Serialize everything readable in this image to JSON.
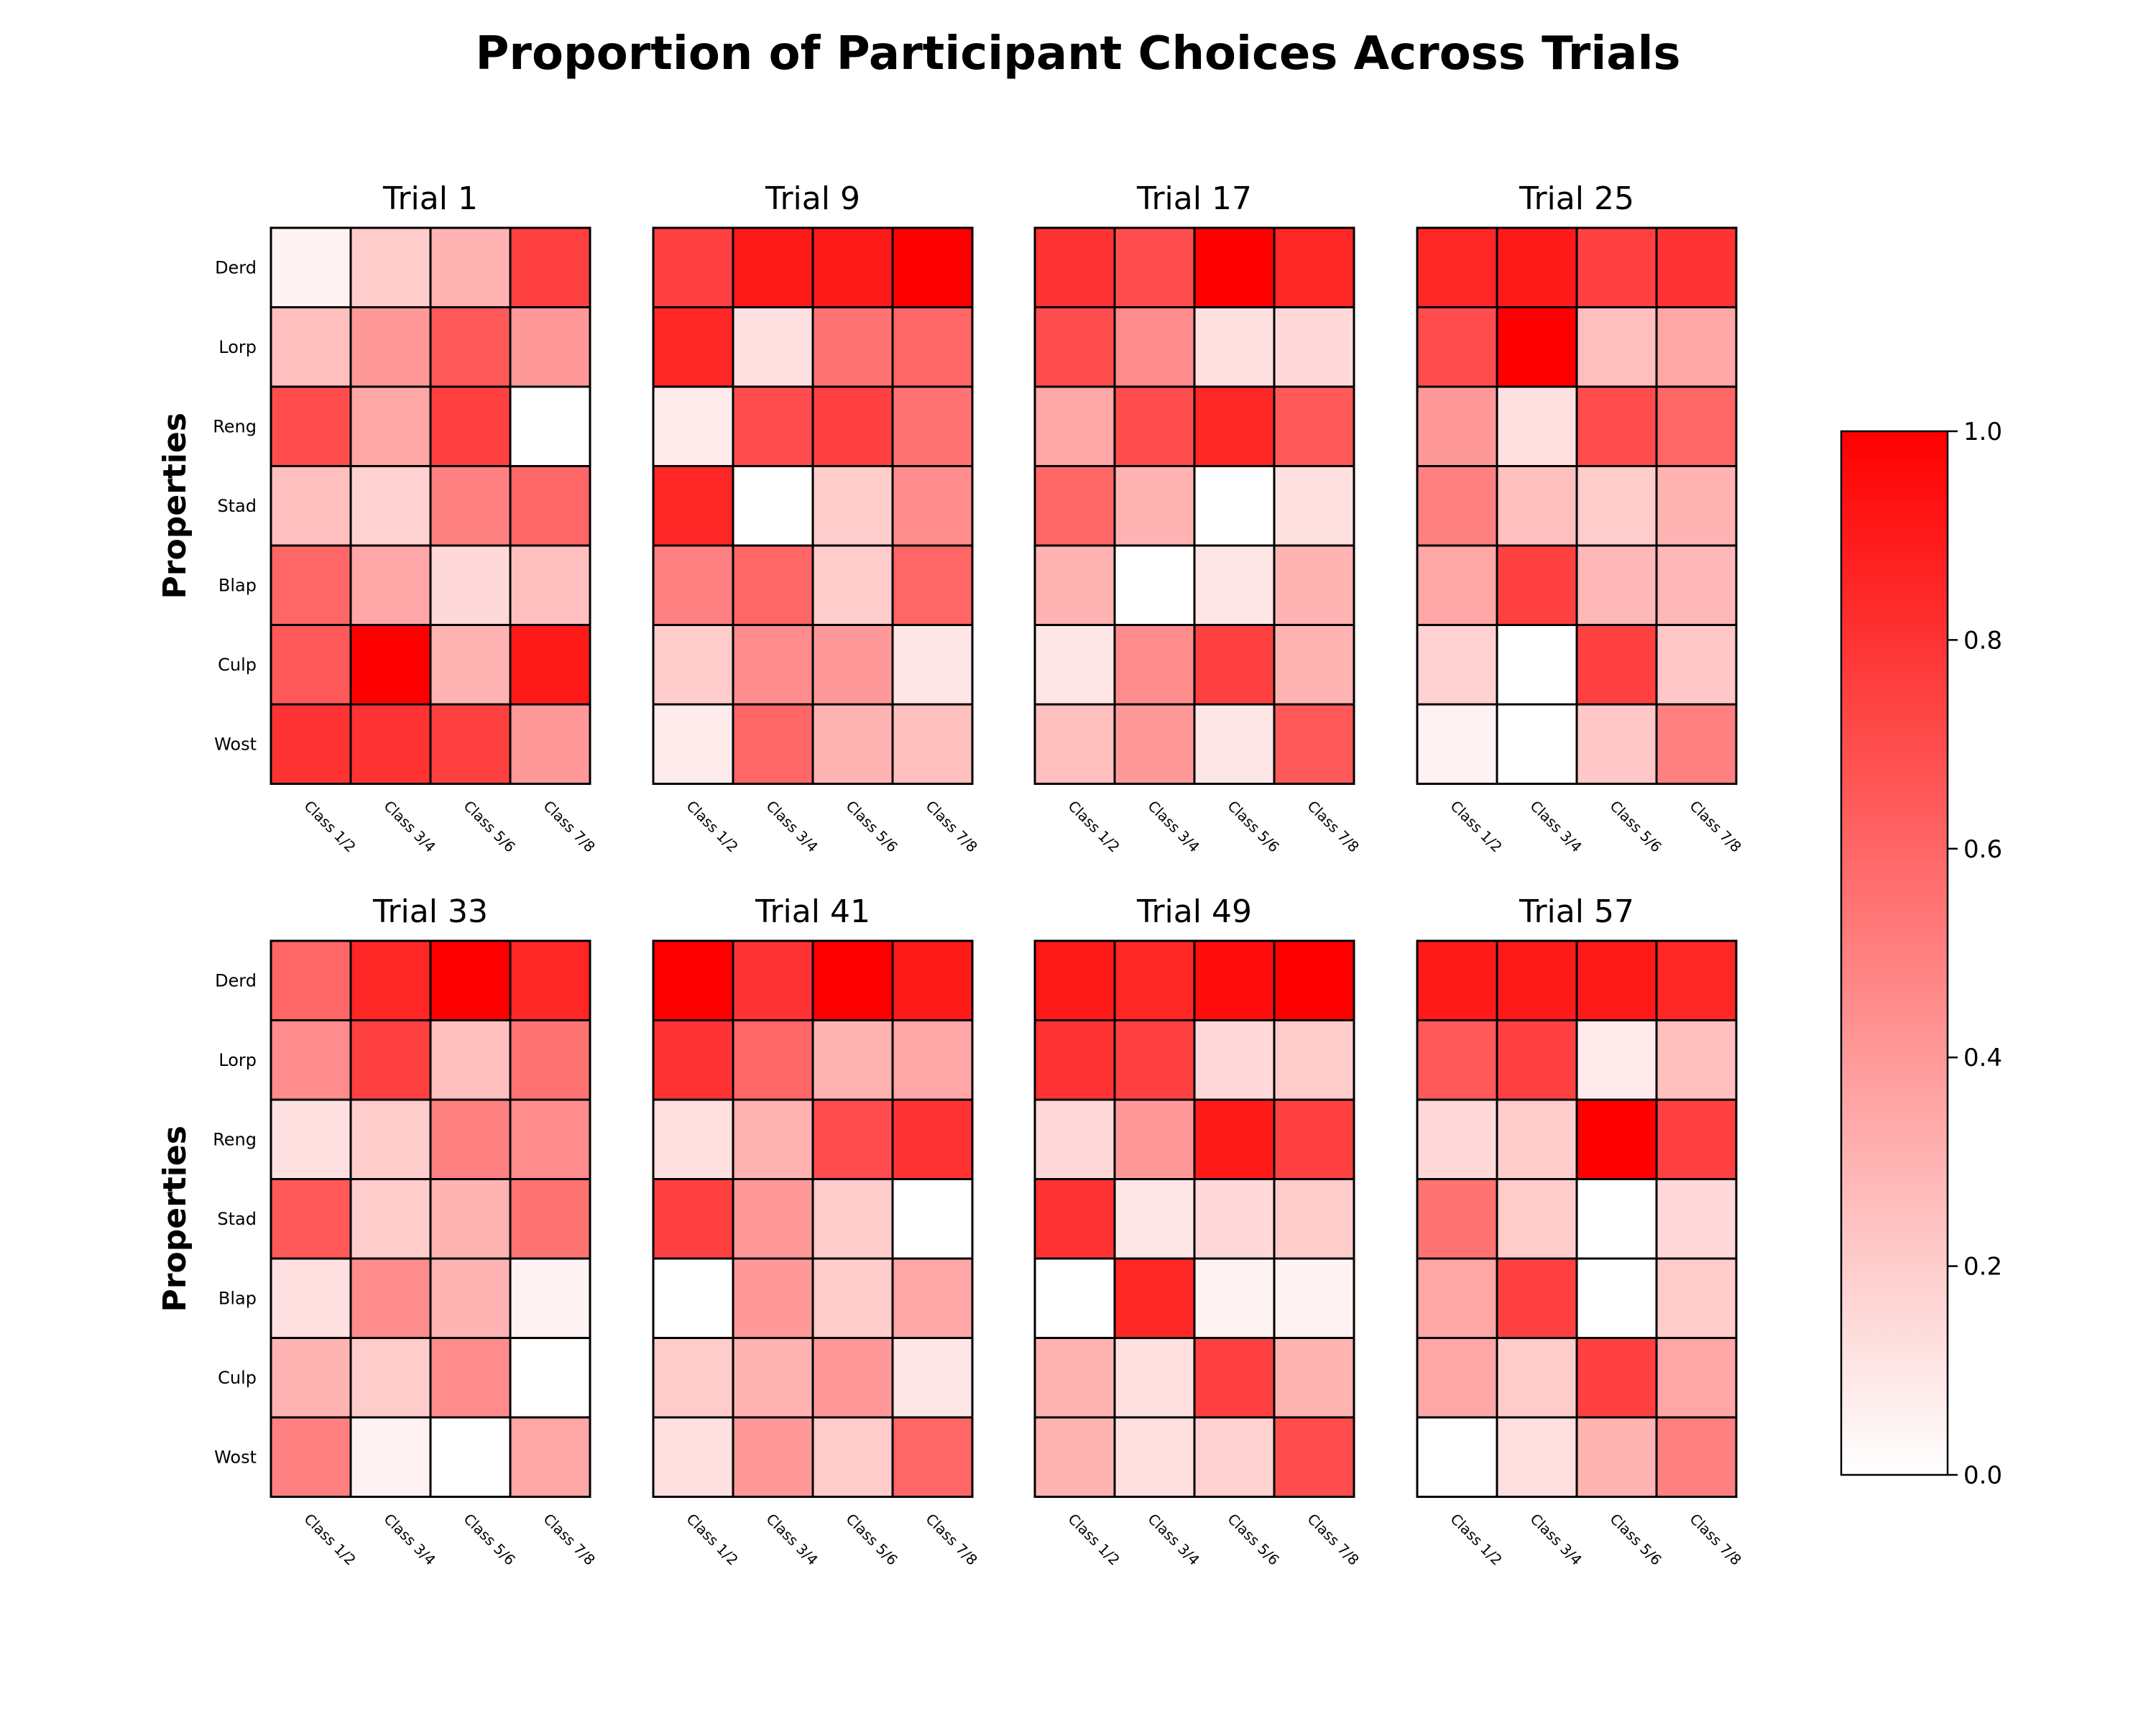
{
  "chart_data": {
    "type": "heatmap",
    "title": "Proportion of Participant Choices Across Trials",
    "ylabel": "Properties",
    "rows": [
      "Derd",
      "Lorp",
      "Reng",
      "Stad",
      "Blap",
      "Culp",
      "Wost"
    ],
    "columns": [
      "Class 1/2",
      "Class 3/4",
      "Class 5/6",
      "Class 7/8"
    ],
    "colorbar": {
      "range": [
        0,
        1
      ],
      "ticks": [
        "0.0",
        "0.2",
        "0.4",
        "0.6",
        "0.8",
        "1.0"
      ],
      "low_color": "#ffffff",
      "high_color": "#ff0000"
    },
    "panels": [
      {
        "title": "Trial 1",
        "values": [
          [
            0.05,
            0.2,
            0.3,
            0.75
          ],
          [
            0.25,
            0.4,
            0.65,
            0.4
          ],
          [
            0.7,
            0.35,
            0.75,
            0.0
          ],
          [
            0.25,
            0.18,
            0.5,
            0.6
          ],
          [
            0.6,
            0.35,
            0.15,
            0.25
          ],
          [
            0.65,
            1.0,
            0.3,
            0.9
          ],
          [
            0.8,
            0.8,
            0.75,
            0.4
          ]
        ]
      },
      {
        "title": "Trial 9",
        "values": [
          [
            0.75,
            0.9,
            0.9,
            1.0
          ],
          [
            0.85,
            0.12,
            0.55,
            0.6
          ],
          [
            0.08,
            0.7,
            0.75,
            0.55
          ],
          [
            0.85,
            0.0,
            0.2,
            0.45
          ],
          [
            0.5,
            0.6,
            0.2,
            0.6
          ],
          [
            0.2,
            0.45,
            0.4,
            0.1
          ],
          [
            0.08,
            0.6,
            0.3,
            0.25
          ]
        ]
      },
      {
        "title": "Trial 17",
        "values": [
          [
            0.8,
            0.7,
            1.0,
            0.85
          ],
          [
            0.7,
            0.45,
            0.12,
            0.15
          ],
          [
            0.35,
            0.7,
            0.85,
            0.65
          ],
          [
            0.6,
            0.3,
            0.0,
            0.12
          ],
          [
            0.3,
            0.0,
            0.1,
            0.3
          ],
          [
            0.1,
            0.45,
            0.75,
            0.3
          ],
          [
            0.25,
            0.4,
            0.1,
            0.65
          ]
        ]
      },
      {
        "title": "Trial 25",
        "values": [
          [
            0.85,
            0.9,
            0.75,
            0.8
          ],
          [
            0.7,
            1.0,
            0.25,
            0.35
          ],
          [
            0.4,
            0.12,
            0.7,
            0.6
          ],
          [
            0.5,
            0.25,
            0.2,
            0.3
          ],
          [
            0.35,
            0.75,
            0.28,
            0.28
          ],
          [
            0.18,
            0.0,
            0.75,
            0.22
          ],
          [
            0.05,
            0.0,
            0.22,
            0.5
          ]
        ]
      },
      {
        "title": "Trial 33",
        "values": [
          [
            0.6,
            0.85,
            1.0,
            0.85
          ],
          [
            0.45,
            0.75,
            0.25,
            0.55
          ],
          [
            0.12,
            0.2,
            0.5,
            0.45
          ],
          [
            0.65,
            0.2,
            0.3,
            0.55
          ],
          [
            0.12,
            0.45,
            0.3,
            0.05
          ],
          [
            0.3,
            0.2,
            0.45,
            0.0
          ],
          [
            0.5,
            0.05,
            0.0,
            0.35
          ]
        ]
      },
      {
        "title": "Trial 41",
        "values": [
          [
            1.0,
            0.8,
            1.0,
            0.9
          ],
          [
            0.8,
            0.6,
            0.3,
            0.35
          ],
          [
            0.12,
            0.3,
            0.7,
            0.8
          ],
          [
            0.75,
            0.4,
            0.2,
            0.0
          ],
          [
            0.0,
            0.4,
            0.2,
            0.35
          ],
          [
            0.2,
            0.3,
            0.4,
            0.1
          ],
          [
            0.12,
            0.4,
            0.2,
            0.6
          ]
        ]
      },
      {
        "title": "Trial 49",
        "values": [
          [
            0.9,
            0.85,
            0.95,
            1.0
          ],
          [
            0.8,
            0.75,
            0.15,
            0.2
          ],
          [
            0.15,
            0.4,
            0.9,
            0.75
          ],
          [
            0.8,
            0.1,
            0.15,
            0.2
          ],
          [
            0.0,
            0.85,
            0.05,
            0.05
          ],
          [
            0.3,
            0.12,
            0.75,
            0.3
          ],
          [
            0.3,
            0.12,
            0.18,
            0.7
          ]
        ]
      },
      {
        "title": "Trial 57",
        "values": [
          [
            0.9,
            0.9,
            0.9,
            0.85
          ],
          [
            0.65,
            0.75,
            0.08,
            0.25
          ],
          [
            0.15,
            0.2,
            1.0,
            0.75
          ],
          [
            0.55,
            0.2,
            0.0,
            0.15
          ],
          [
            0.35,
            0.75,
            0.0,
            0.2
          ],
          [
            0.35,
            0.2,
            0.75,
            0.35
          ],
          [
            0.0,
            0.12,
            0.3,
            0.5
          ]
        ]
      }
    ]
  }
}
